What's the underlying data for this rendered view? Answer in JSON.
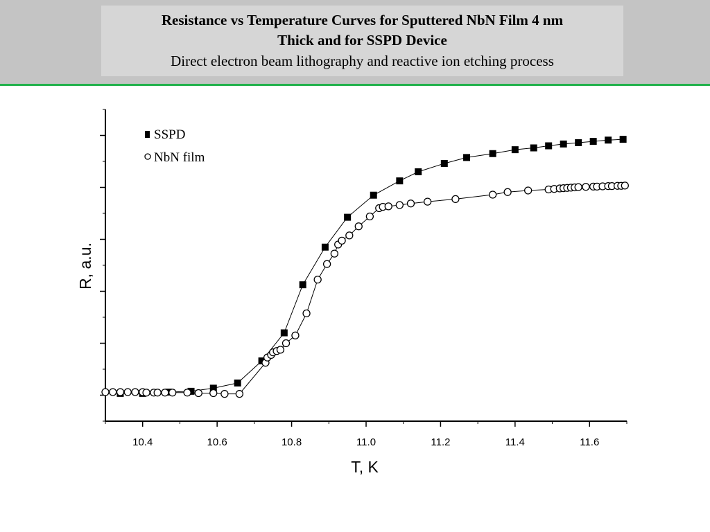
{
  "header": {
    "title_line1": "Resistance vs Temperature Curves for Sputtered NbN Film 4 nm",
    "title_line2": "Thick and for SSPD Device",
    "subtitle": "Direct electron beam lithography and reactive ion etching process"
  },
  "colors": {
    "header_band": "#c4c4c4",
    "title_box": "#d6d6d6",
    "rule": "#22b14c",
    "marks": "#000000"
  },
  "chart_data": {
    "type": "scatter",
    "xlabel": "T, K",
    "ylabel": "R, a.u.",
    "xlim": [
      10.3,
      11.7
    ],
    "ylim": [
      0,
      12
    ],
    "x_ticks": [
      10.4,
      10.6,
      10.8,
      11.0,
      11.2,
      11.4,
      11.6
    ],
    "x_tick_labels": [
      "10.4",
      "10.6",
      "10.8",
      "11.0",
      "11.2",
      "11.4",
      "11.6"
    ],
    "y_ticks_labeled": false,
    "grid": false,
    "legend_position": "top-left",
    "series": [
      {
        "name": "SSPD",
        "marker": "filled-square",
        "connected": true,
        "x": [
          10.34,
          10.4,
          10.47,
          10.53,
          10.59,
          10.655,
          10.72,
          10.78,
          10.83,
          10.89,
          10.95,
          11.02,
          11.09,
          11.14,
          11.21,
          11.27,
          11.34,
          11.4,
          11.45,
          11.49,
          11.53,
          11.57,
          11.61,
          11.65,
          11.69
        ],
        "y": [
          1.07,
          1.07,
          1.12,
          1.15,
          1.27,
          1.47,
          2.32,
          3.4,
          5.25,
          6.7,
          7.85,
          8.7,
          9.25,
          9.6,
          9.92,
          10.15,
          10.3,
          10.45,
          10.52,
          10.6,
          10.67,
          10.72,
          10.77,
          10.82,
          10.85
        ]
      },
      {
        "name": "NbN film",
        "marker": "open-circle",
        "connected": true,
        "x": [
          10.3,
          10.32,
          10.34,
          10.36,
          10.38,
          10.4,
          10.41,
          10.43,
          10.44,
          10.46,
          10.48,
          10.52,
          10.55,
          10.59,
          10.62,
          10.66,
          10.73,
          10.735,
          10.745,
          10.75,
          10.76,
          10.77,
          10.785,
          10.81,
          10.84,
          10.87,
          10.895,
          10.915,
          10.925,
          10.935,
          10.955,
          10.98,
          11.01,
          11.035,
          11.045,
          11.06,
          11.09,
          11.12,
          11.165,
          11.24,
          11.34,
          11.38,
          11.435,
          11.49,
          11.505,
          11.52,
          11.53,
          11.54,
          11.55,
          11.56,
          11.57,
          11.59,
          11.61,
          11.62,
          11.635,
          11.65,
          11.66,
          11.675,
          11.685,
          11.695
        ],
        "y": [
          1.12,
          1.12,
          1.12,
          1.12,
          1.12,
          1.12,
          1.1,
          1.1,
          1.1,
          1.1,
          1.1,
          1.1,
          1.08,
          1.08,
          1.05,
          1.05,
          2.25,
          2.45,
          2.55,
          2.65,
          2.7,
          2.75,
          3.0,
          3.3,
          4.15,
          5.45,
          6.05,
          6.45,
          6.8,
          6.95,
          7.15,
          7.5,
          7.88,
          8.2,
          8.25,
          8.27,
          8.32,
          8.38,
          8.45,
          8.55,
          8.72,
          8.82,
          8.88,
          8.92,
          8.94,
          8.96,
          8.97,
          8.98,
          8.99,
          9.0,
          9.01,
          9.02,
          9.03,
          9.03,
          9.04,
          9.05,
          9.05,
          9.06,
          9.06,
          9.07
        ]
      }
    ]
  }
}
